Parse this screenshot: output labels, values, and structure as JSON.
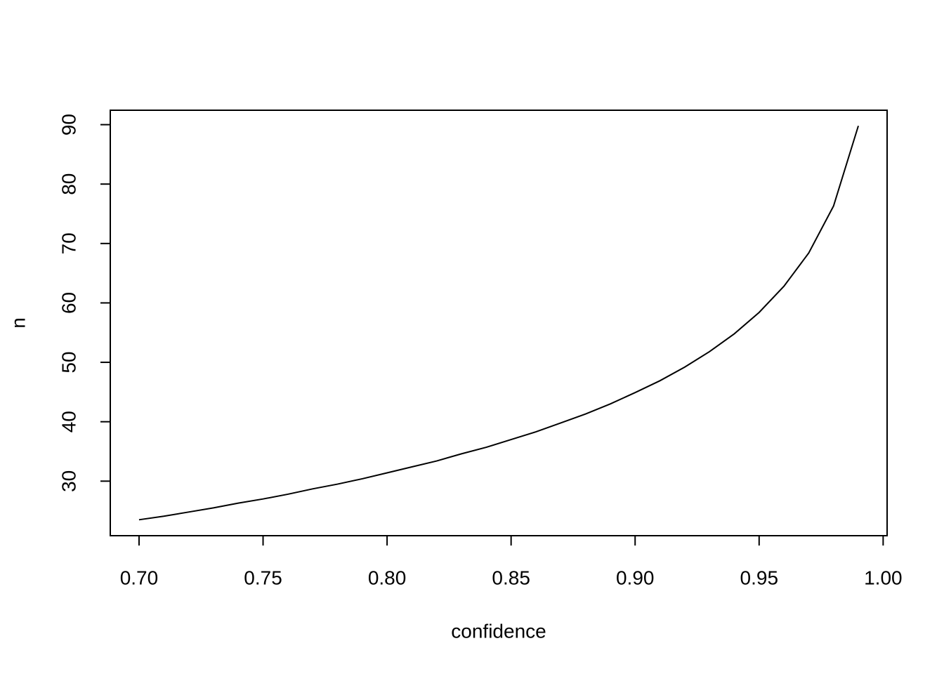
{
  "chart_data": {
    "type": "line",
    "x_label": "confidence",
    "y_label": "n",
    "x": [
      0.7,
      0.71,
      0.72,
      0.73,
      0.74,
      0.75,
      0.76,
      0.77,
      0.78,
      0.79,
      0.8,
      0.81,
      0.82,
      0.83,
      0.84,
      0.85,
      0.86,
      0.87,
      0.88,
      0.89,
      0.9,
      0.91,
      0.92,
      0.93,
      0.94,
      0.95,
      0.96,
      0.97,
      0.98,
      0.99
    ],
    "series": [
      {
        "color": "#000000",
        "values": [
          23.5,
          24.1,
          24.8,
          25.5,
          26.3,
          27.0,
          27.8,
          28.7,
          29.5,
          30.4,
          31.4,
          32.4,
          33.4,
          34.6,
          35.7,
          37.0,
          38.3,
          39.8,
          41.3,
          43.0,
          44.9,
          46.9,
          49.2,
          51.8,
          54.8,
          58.4,
          62.8,
          68.4,
          76.3,
          89.8
        ]
      }
    ],
    "xlim": [
      0.6884,
      1.0016
    ],
    "xticks": [
      {
        "value": 0.7,
        "label": "0.70"
      },
      {
        "value": 0.75,
        "label": "0.75"
      },
      {
        "value": 0.8,
        "label": "0.80"
      },
      {
        "value": 0.85,
        "label": "0.85"
      },
      {
        "value": 0.9,
        "label": "0.90"
      },
      {
        "value": 0.95,
        "label": "0.95"
      },
      {
        "value": 1,
        "label": "1.00"
      }
    ],
    "ylim": [
      20.82,
      92.43
    ],
    "yticks": [
      30,
      40,
      50,
      60,
      70,
      80,
      90
    ]
  }
}
